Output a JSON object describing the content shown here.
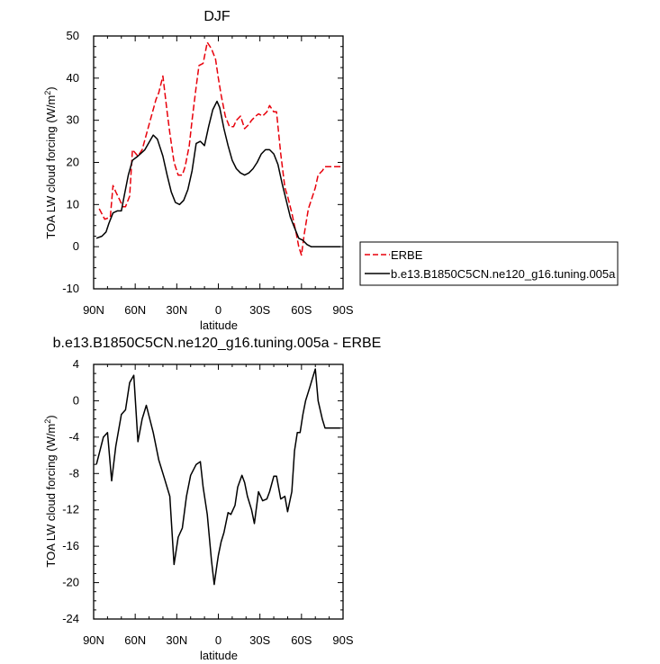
{
  "chart_data": [
    {
      "type": "line",
      "title": "DJF",
      "xlabel": "latitude",
      "ylabel": "TOA LW cloud forcing (W/m",
      "ylabel_sup": "2",
      "ylabel_end": ")",
      "xlim": [
        90,
        -90
      ],
      "ylim": [
        -10,
        50
      ],
      "xticks": [
        90,
        60,
        30,
        0,
        -30,
        -60,
        -90
      ],
      "xtick_labels": [
        "90N",
        "60N",
        "30N",
        "0",
        "30S",
        "60S",
        "90S"
      ],
      "yticks": [
        -10,
        0,
        10,
        20,
        30,
        40,
        50
      ],
      "ytick_labels": [
        "-10",
        "0",
        "10",
        "20",
        "30",
        "40",
        "50"
      ],
      "legend_position": "right",
      "series": [
        {
          "name": "ERBE",
          "color": "#e8000b",
          "dash": true,
          "x": [
            86,
            82,
            78,
            76,
            74,
            71,
            69,
            67,
            64,
            62,
            58,
            55,
            50,
            45,
            43,
            40,
            37,
            35,
            32,
            29,
            26,
            24,
            21,
            19,
            16,
            14,
            11,
            8,
            5,
            2,
            0,
            -2,
            -5,
            -8,
            -11,
            -13,
            -16,
            -19,
            -22,
            -24,
            -27,
            -29,
            -32,
            -35,
            -37,
            -40,
            -42,
            -45,
            -48,
            -50,
            -53,
            -55,
            -56,
            -58,
            -60,
            -62,
            -65,
            -67,
            -70,
            -72,
            -75,
            -77,
            -79,
            -81,
            -83,
            -85,
            -87,
            -89
          ],
          "y": [
            9,
            6.5,
            7,
            14.5,
            13,
            11,
            9.5,
            9.5,
            12,
            23,
            21.5,
            23,
            29,
            35,
            36.5,
            40.5,
            32,
            27,
            20,
            17,
            17,
            19,
            24,
            30,
            38,
            43,
            43.5,
            48.5,
            47,
            44.5,
            40,
            36,
            31,
            28.5,
            28.5,
            30,
            31,
            28,
            29,
            30,
            31,
            31.5,
            31,
            32,
            33.5,
            32,
            32,
            22,
            14,
            12,
            8,
            5,
            3.5,
            0,
            -2,
            3,
            9,
            11,
            14,
            17,
            18,
            19,
            19,
            19,
            19,
            19,
            19,
            19
          ]
        },
        {
          "name": "b.e13.B1850C5CN.ne120_g16.tuning.005a",
          "color": "#000000",
          "dash": false,
          "x": [
            88,
            84,
            81,
            79,
            76,
            73,
            70,
            68,
            65,
            62,
            58,
            53,
            47,
            44,
            40,
            37,
            34,
            31,
            28,
            25,
            22,
            19,
            16,
            13,
            10,
            7,
            4,
            1,
            -1,
            -4,
            -7,
            -10,
            -13,
            -16,
            -19,
            -22,
            -25,
            -28,
            -31,
            -34,
            -37,
            -40,
            -43,
            -46,
            -49,
            -52,
            -55,
            -58,
            -61,
            -64,
            -67,
            -70,
            -73,
            -76,
            -79,
            -82,
            -85,
            -88
          ],
          "y": [
            2,
            2.5,
            3.5,
            5.5,
            8,
            8.5,
            8.5,
            12,
            17,
            20.5,
            21.5,
            23,
            26.5,
            25.5,
            21.5,
            17,
            13,
            10.5,
            10,
            11,
            13.5,
            18,
            24.5,
            25,
            24,
            28.5,
            32.5,
            34.5,
            33,
            28,
            24,
            20.5,
            18.5,
            17.5,
            17,
            17.5,
            18.5,
            20,
            22,
            23,
            23,
            22,
            19.5,
            15,
            11,
            7,
            4.5,
            2,
            1.5,
            0.5,
            0,
            0,
            0,
            0,
            0,
            0,
            0,
            0
          ]
        }
      ]
    },
    {
      "type": "line",
      "title": "b.e13.B1850C5CN.ne120_g16.tuning.005a - ERBE",
      "xlabel": "latitude",
      "ylabel": "TOA LW cloud forcing (W/m",
      "ylabel_sup": "2",
      "ylabel_end": ")",
      "xlim": [
        90,
        -90
      ],
      "ylim": [
        -24,
        4
      ],
      "xticks": [
        90,
        60,
        30,
        0,
        -30,
        -60,
        -90
      ],
      "xtick_labels": [
        "90N",
        "60N",
        "30N",
        "0",
        "30S",
        "60S",
        "90S"
      ],
      "yticks": [
        -24,
        -20,
        -16,
        -12,
        -8,
        -4,
        0,
        4
      ],
      "ytick_labels": [
        "-24",
        "-20",
        "-16",
        "-12",
        "-8",
        "-4",
        "0",
        "4"
      ],
      "series": [
        {
          "name": "",
          "color": "#000000",
          "dash": false,
          "x": [
            88,
            83,
            80,
            77,
            74,
            70,
            67,
            64,
            61,
            58,
            55,
            52,
            47,
            43,
            39,
            35,
            32,
            29,
            26,
            23,
            20,
            16,
            13,
            11,
            8,
            5,
            3,
            1,
            0,
            -2,
            -4,
            -7,
            -9,
            -12,
            -14,
            -17,
            -19,
            -21,
            -24,
            -26,
            -29,
            -32,
            -35,
            -37,
            -40,
            -42,
            -45,
            -48,
            -50,
            -53,
            -55,
            -57,
            -59,
            -61,
            -63,
            -66,
            -68,
            -70,
            -72,
            -75,
            -77,
            -80,
            -82,
            -84,
            -86,
            -88
          ],
          "y": [
            -7,
            -4,
            -3.5,
            -8.8,
            -5,
            -1.5,
            -1,
            2,
            2.8,
            -4.5,
            -2,
            -0.5,
            -3.5,
            -6.5,
            -8.5,
            -10.5,
            -18,
            -15,
            -14,
            -10.5,
            -8.2,
            -7,
            -6.7,
            -9.5,
            -12.5,
            -17.5,
            -20.2,
            -18,
            -17,
            -15.5,
            -14.5,
            -12.3,
            -12.5,
            -11.5,
            -9.5,
            -8.2,
            -9,
            -10.5,
            -12,
            -13.5,
            -10,
            -11,
            -10.8,
            -10,
            -8.3,
            -8.3,
            -10.8,
            -10.5,
            -12.2,
            -10,
            -5.5,
            -3.5,
            -3.5,
            -1.5,
            0,
            1.5,
            2.5,
            3.5,
            0,
            -2,
            -3,
            -3,
            -3,
            -3,
            -3,
            -3
          ]
        }
      ]
    }
  ]
}
